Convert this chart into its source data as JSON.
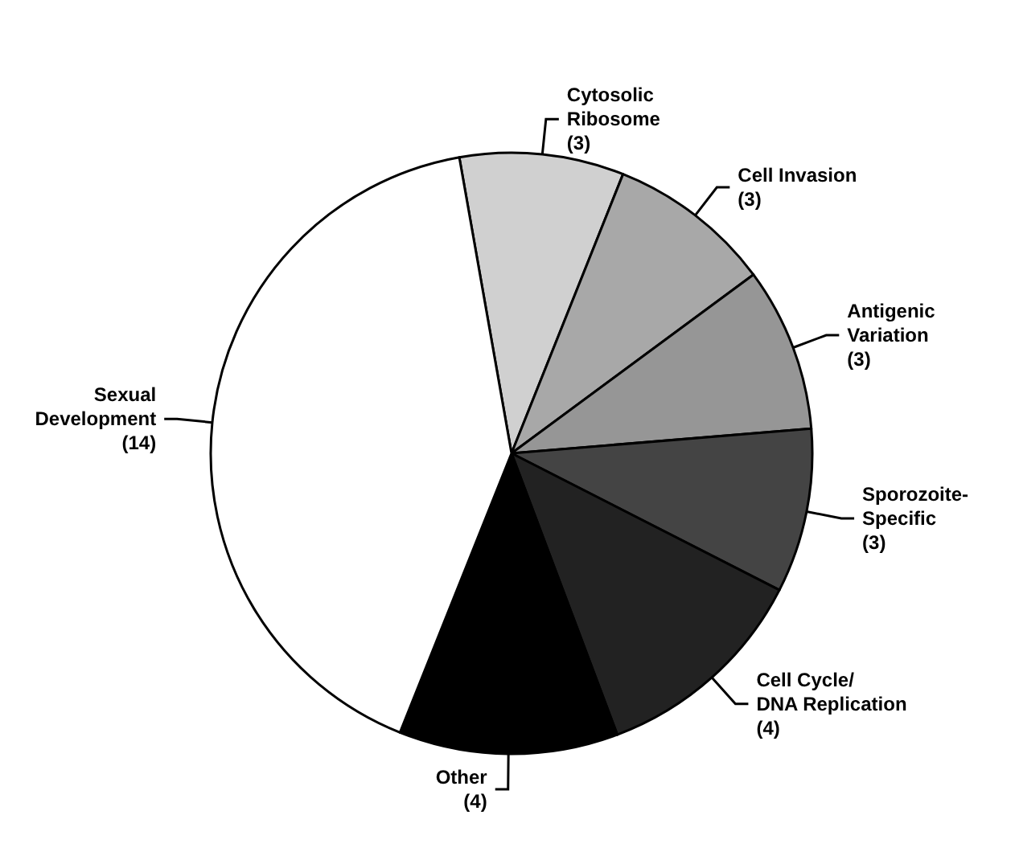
{
  "chart_data": {
    "type": "pie",
    "categories": [
      "Cytosolic Ribosome",
      "Cell Invasion",
      "Antigenic Variation",
      "Sporozoite-Specific",
      "Cell Cycle/DNA Replication",
      "Other",
      "Sexual Development"
    ],
    "values": [
      3,
      3,
      3,
      3,
      4,
      4,
      14
    ],
    "colors": [
      "#d0d0d0",
      "#a8a8a8",
      "#969696",
      "#444444",
      "#222222",
      "#000000",
      "#ffffff"
    ],
    "value_labels": [
      "(3)",
      "(3)",
      "(3)",
      "(3)",
      "(4)",
      "(4)",
      "(14)"
    ],
    "legend": false
  }
}
